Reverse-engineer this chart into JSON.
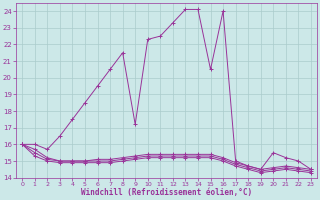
{
  "xlabel": "Windchill (Refroidissement éolien,°C)",
  "background_color": "#cce8e8",
  "grid_color": "#aacccc",
  "line_color": "#993399",
  "xlim": [
    -0.5,
    23.5
  ],
  "ylim": [
    14,
    24.5
  ],
  "yticks": [
    14,
    15,
    16,
    17,
    18,
    19,
    20,
    21,
    22,
    23,
    24
  ],
  "xticks": [
    0,
    1,
    2,
    3,
    4,
    5,
    6,
    7,
    8,
    9,
    10,
    11,
    12,
    13,
    14,
    15,
    16,
    17,
    18,
    19,
    20,
    21,
    22,
    23
  ],
  "series": [
    [
      16.0,
      16.0,
      15.7,
      16.5,
      17.5,
      18.5,
      19.5,
      20.5,
      21.5,
      17.2,
      22.3,
      22.5,
      23.3,
      24.1,
      24.1,
      20.5,
      24.0,
      15.0,
      14.7,
      14.5,
      15.5,
      15.2,
      15.0,
      14.5
    ],
    [
      16.0,
      15.7,
      15.2,
      15.0,
      15.0,
      15.0,
      15.1,
      15.1,
      15.2,
      15.3,
      15.4,
      15.4,
      15.4,
      15.4,
      15.4,
      15.4,
      15.2,
      14.9,
      14.7,
      14.5,
      14.6,
      14.7,
      14.6,
      14.5
    ],
    [
      16.0,
      15.5,
      15.1,
      15.0,
      15.0,
      15.0,
      15.0,
      15.0,
      15.1,
      15.2,
      15.3,
      15.3,
      15.3,
      15.3,
      15.3,
      15.3,
      15.1,
      14.8,
      14.6,
      14.4,
      14.5,
      14.6,
      14.5,
      14.4
    ],
    [
      16.0,
      15.3,
      15.0,
      14.9,
      14.9,
      14.9,
      14.9,
      14.9,
      15.0,
      15.1,
      15.2,
      15.2,
      15.2,
      15.2,
      15.2,
      15.2,
      15.0,
      14.7,
      14.5,
      14.3,
      14.4,
      14.5,
      14.4,
      14.3
    ]
  ]
}
